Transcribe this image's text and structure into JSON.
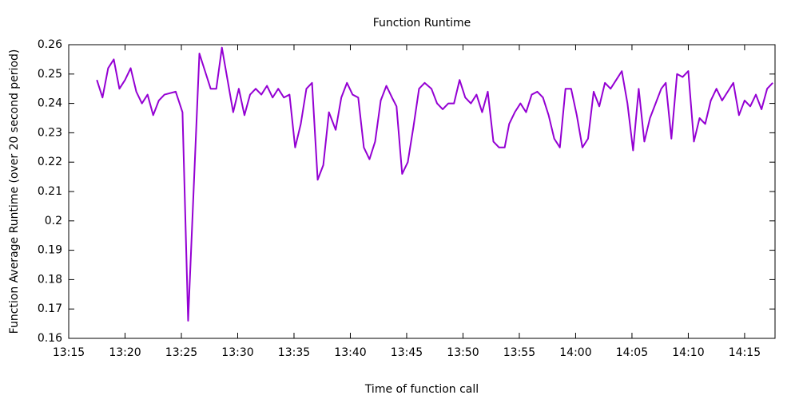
{
  "chart_data": {
    "type": "line",
    "title": "Function Runtime",
    "x_label": "Time of function call",
    "y_label": "Function Average Runtime (over 20 second period)",
    "color": "#9400d3",
    "xlim": [
      795,
      857.7
    ],
    "xticks": [
      {
        "value": 795,
        "label": "13:15"
      },
      {
        "value": 800,
        "label": "13:20"
      },
      {
        "value": 805,
        "label": "13:25"
      },
      {
        "value": 810,
        "label": "13:30"
      },
      {
        "value": 815,
        "label": "13:35"
      },
      {
        "value": 820,
        "label": "13:40"
      },
      {
        "value": 825,
        "label": "13:45"
      },
      {
        "value": 830,
        "label": "13:50"
      },
      {
        "value": 835,
        "label": "13:55"
      },
      {
        "value": 840,
        "label": "14:00"
      },
      {
        "value": 845,
        "label": "14:05"
      },
      {
        "value": 850,
        "label": "14:10"
      },
      {
        "value": 855,
        "label": "14:15"
      }
    ],
    "ylim": [
      0.16,
      0.26
    ],
    "yticks": [
      0.16,
      0.17,
      0.18,
      0.19,
      0.2,
      0.21,
      0.22,
      0.23,
      0.24,
      0.25,
      0.26
    ],
    "x": [
      797.5,
      798.0,
      798.5,
      799.0,
      799.5,
      800.0,
      800.5,
      801.0,
      801.5,
      802.0,
      802.5,
      803.0,
      803.5,
      804.5,
      805.1,
      805.6,
      806.6,
      807.1,
      807.6,
      808.1,
      808.6,
      809.1,
      809.6,
      810.1,
      810.6,
      811.1,
      811.6,
      812.1,
      812.6,
      813.1,
      813.6,
      814.1,
      814.6,
      815.1,
      815.6,
      816.1,
      816.6,
      817.1,
      817.6,
      818.1,
      818.7,
      819.2,
      819.7,
      820.2,
      820.7,
      821.2,
      821.7,
      822.2,
      822.7,
      823.2,
      823.7,
      824.1,
      824.6,
      825.1,
      825.6,
      826.1,
      826.6,
      827.2,
      827.7,
      828.2,
      828.7,
      829.2,
      829.7,
      830.2,
      830.7,
      831.2,
      831.7,
      832.2,
      832.7,
      833.2,
      833.7,
      834.1,
      834.6,
      835.1,
      835.6,
      836.1,
      836.6,
      837.1,
      837.6,
      838.1,
      838.6,
      839.1,
      839.6,
      840.1,
      840.6,
      841.1,
      841.6,
      842.1,
      842.6,
      843.1,
      843.6,
      844.1,
      844.6,
      845.1,
      845.6,
      846.1,
      846.6,
      847.1,
      847.6,
      848.0,
      848.5,
      849.0,
      849.5,
      850.0,
      850.5,
      851.0,
      851.5,
      852.0,
      852.5,
      853.0,
      853.5,
      854.0,
      854.5,
      855.0,
      855.5,
      856.0,
      856.5,
      857.0,
      857.5
    ],
    "values": [
      0.248,
      0.242,
      0.252,
      0.255,
      0.245,
      0.248,
      0.252,
      0.244,
      0.24,
      0.243,
      0.236,
      0.241,
      0.243,
      0.244,
      0.237,
      0.166,
      0.257,
      0.251,
      0.245,
      0.245,
      0.259,
      0.248,
      0.237,
      0.245,
      0.236,
      0.243,
      0.245,
      0.243,
      0.246,
      0.242,
      0.245,
      0.242,
      0.243,
      0.225,
      0.233,
      0.245,
      0.247,
      0.214,
      0.219,
      0.237,
      0.231,
      0.242,
      0.247,
      0.243,
      0.242,
      0.225,
      0.221,
      0.227,
      0.241,
      0.246,
      0.242,
      0.239,
      0.216,
      0.22,
      0.232,
      0.245,
      0.247,
      0.245,
      0.24,
      0.238,
      0.24,
      0.24,
      0.248,
      0.242,
      0.24,
      0.243,
      0.237,
      0.244,
      0.227,
      0.225,
      0.225,
      0.233,
      0.237,
      0.24,
      0.237,
      0.243,
      0.244,
      0.242,
      0.236,
      0.228,
      0.225,
      0.245,
      0.245,
      0.236,
      0.225,
      0.228,
      0.244,
      0.239,
      0.247,
      0.245,
      0.248,
      0.251,
      0.24,
      0.224,
      0.245,
      0.227,
      0.235,
      0.24,
      0.245,
      0.247,
      0.228,
      0.25,
      0.249,
      0.251,
      0.227,
      0.235,
      0.233,
      0.241,
      0.245,
      0.241,
      0.244,
      0.247,
      0.236,
      0.241,
      0.239,
      0.243,
      0.238,
      0.245,
      0.247
    ]
  }
}
